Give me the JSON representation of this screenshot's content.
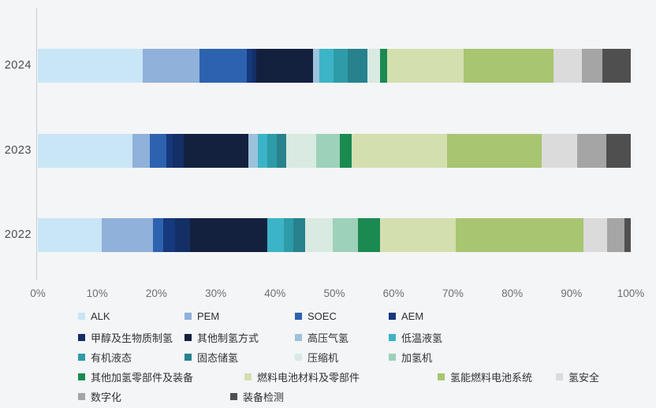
{
  "page": {
    "background": "#f4f5f6"
  },
  "chart_data": {
    "type": "bar",
    "orientation": "horizontal",
    "stacked": true,
    "title": "",
    "value_unit": "percent",
    "xlim": [
      0,
      100
    ],
    "grid": false,
    "legend_position": "bottom",
    "categories": [
      "2024",
      "2023",
      "2022"
    ],
    "x_tick_labels": [
      "0%",
      "10%",
      "20%",
      "30%",
      "40%",
      "50%",
      "60%",
      "70%",
      "80%",
      "90%",
      "100%"
    ],
    "series": [
      {
        "name": "ALK",
        "color": "#c9e6f7",
        "values": [
          17.7,
          16.0,
          10.8
        ]
      },
      {
        "name": "PEM",
        "color": "#90b1da",
        "values": [
          9.6,
          2.9,
          8.7
        ]
      },
      {
        "name": "SOEC",
        "color": "#2d62b0",
        "values": [
          8.0,
          2.8,
          1.7
        ]
      },
      {
        "name": "AEM",
        "color": "#16387c",
        "values": [
          1.0,
          1.0,
          2.0
        ]
      },
      {
        "name": "甲醇及生物质制氢",
        "color": "#132f66",
        "values": [
          0.6,
          1.9,
          2.5
        ]
      },
      {
        "name": "其他制氢方式",
        "color": "#13213f",
        "values": [
          9.6,
          10.9,
          13.0
        ]
      },
      {
        "name": "高压气氢",
        "color": "#9dc2dc",
        "values": [
          1.1,
          1.6,
          0.0
        ]
      },
      {
        "name": "低温液氢",
        "color": "#3cb4c7",
        "values": [
          2.4,
          1.6,
          2.8
        ]
      },
      {
        "name": "有机液态",
        "color": "#2d9ca8",
        "values": [
          2.4,
          1.6,
          1.6
        ]
      },
      {
        "name": "固态储氢",
        "color": "#27828e",
        "values": [
          3.3,
          1.6,
          2.0
        ]
      },
      {
        "name": "压缩机",
        "color": "#d8eae1",
        "values": [
          2.1,
          5.1,
          4.7
        ]
      },
      {
        "name": "加氢机",
        "color": "#9dd1ba",
        "values": [
          0.0,
          4.0,
          4.3
        ]
      },
      {
        "name": "其他加氢零部件及装备",
        "color": "#1b8a50",
        "values": [
          1.3,
          2.0,
          3.7
        ]
      },
      {
        "name": "燃料电池材料及零部件",
        "color": "#d3dfae",
        "values": [
          12.8,
          16.1,
          12.8
        ]
      },
      {
        "name": "氢能燃料电池系统",
        "color": "#a8c571",
        "values": [
          15.3,
          16.0,
          21.5
        ]
      },
      {
        "name": "氢安全",
        "color": "#dbdbdb",
        "values": [
          4.7,
          6.0,
          4.0
        ]
      },
      {
        "name": "数字化",
        "color": "#a5a5a5",
        "values": [
          3.5,
          4.9,
          2.9
        ]
      },
      {
        "name": "装备检测",
        "color": "#4f4f4f",
        "values": [
          4.8,
          4.1,
          1.1
        ]
      }
    ]
  }
}
